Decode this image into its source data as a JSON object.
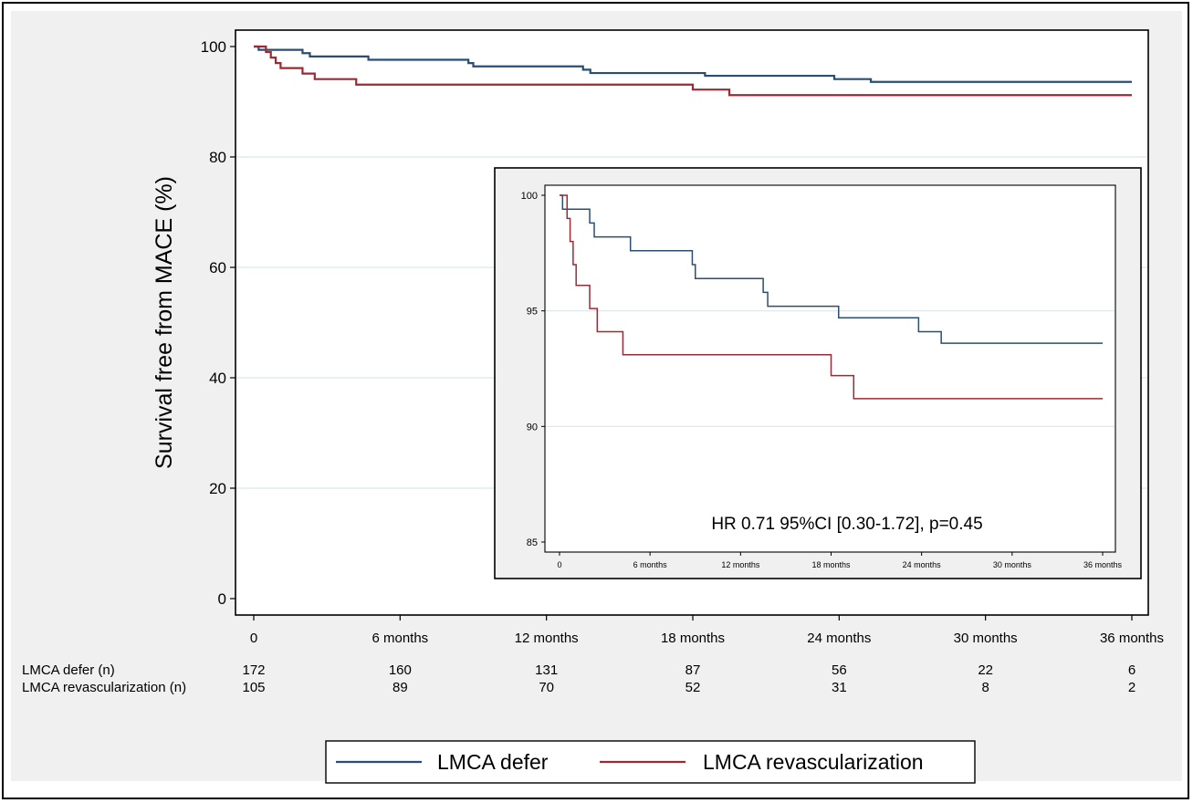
{
  "chart_data": [
    {
      "type": "line",
      "step": true,
      "ylabel": "Survival free from MACE  (%)",
      "xlabel": "",
      "ylim": [
        0,
        100
      ],
      "xlim": [
        0,
        36
      ],
      "yticks": [
        "0",
        "20",
        "40",
        "60",
        "80",
        "100"
      ],
      "xticks": [
        {
          "x": 0,
          "label": "0"
        },
        {
          "x": 6,
          "label": "6 months"
        },
        {
          "x": 12,
          "label": "12 months"
        },
        {
          "x": 18,
          "label": "18 months"
        },
        {
          "x": 24,
          "label": "24 months"
        },
        {
          "x": 30,
          "label": "30 months"
        },
        {
          "x": 36,
          "label": "36 months"
        }
      ],
      "grid": true,
      "legend": {
        "placement": "bottom"
      },
      "series": [
        {
          "name": "LMCA defer",
          "color": "#2a4e73",
          "points": [
            [
              0,
              100
            ],
            [
              0.2,
              99.4
            ],
            [
              2,
              98.8
            ],
            [
              2.3,
              98.2
            ],
            [
              4.7,
              97.6
            ],
            [
              8.8,
              97
            ],
            [
              9,
              96.4
            ],
            [
              13.5,
              95.8
            ],
            [
              13.8,
              95.2
            ],
            [
              18.5,
              94.7
            ],
            [
              23.8,
              94.1
            ],
            [
              25.3,
              93.6
            ],
            [
              36,
              93.6
            ]
          ]
        },
        {
          "name": "LMCA revascularization",
          "color": "#9c2a35",
          "points": [
            [
              0,
              100
            ],
            [
              0.5,
              99
            ],
            [
              0.7,
              98
            ],
            [
              0.9,
              97
            ],
            [
              1.1,
              96.1
            ],
            [
              2,
              95.1
            ],
            [
              2.5,
              94.1
            ],
            [
              4.2,
              93.1
            ],
            [
              18,
              92.2
            ],
            [
              19.5,
              91.2
            ],
            [
              36,
              91.2
            ]
          ]
        }
      ],
      "risk_table": {
        "rows": [
          {
            "label": "LMCA defer (n)",
            "values": [
              "172",
              "160",
              "131",
              "87",
              "56",
              "22",
              "6"
            ]
          },
          {
            "label": "LMCA revascularization (n)",
            "values": [
              "105",
              "89",
              "70",
              "52",
              "31",
              "8",
              "2"
            ]
          }
        ]
      }
    },
    {
      "type": "line",
      "step": true,
      "title": "",
      "ylim": [
        85,
        100
      ],
      "xlim": [
        0,
        36
      ],
      "yticks": [
        "85",
        "90",
        "95",
        "100"
      ],
      "xticks": [
        {
          "x": 0,
          "label": "0"
        },
        {
          "x": 6,
          "label": "6 months"
        },
        {
          "x": 12,
          "label": "12 months"
        },
        {
          "x": 18,
          "label": "18 months"
        },
        {
          "x": 24,
          "label": "24 months"
        },
        {
          "x": 30,
          "label": "30 months"
        },
        {
          "x": 36,
          "label": "36 months"
        }
      ],
      "annotation": "HR 0.71 95%CI [0.30-1.72], p=0.45",
      "grid": true,
      "series_ref": "same as main chart"
    }
  ]
}
